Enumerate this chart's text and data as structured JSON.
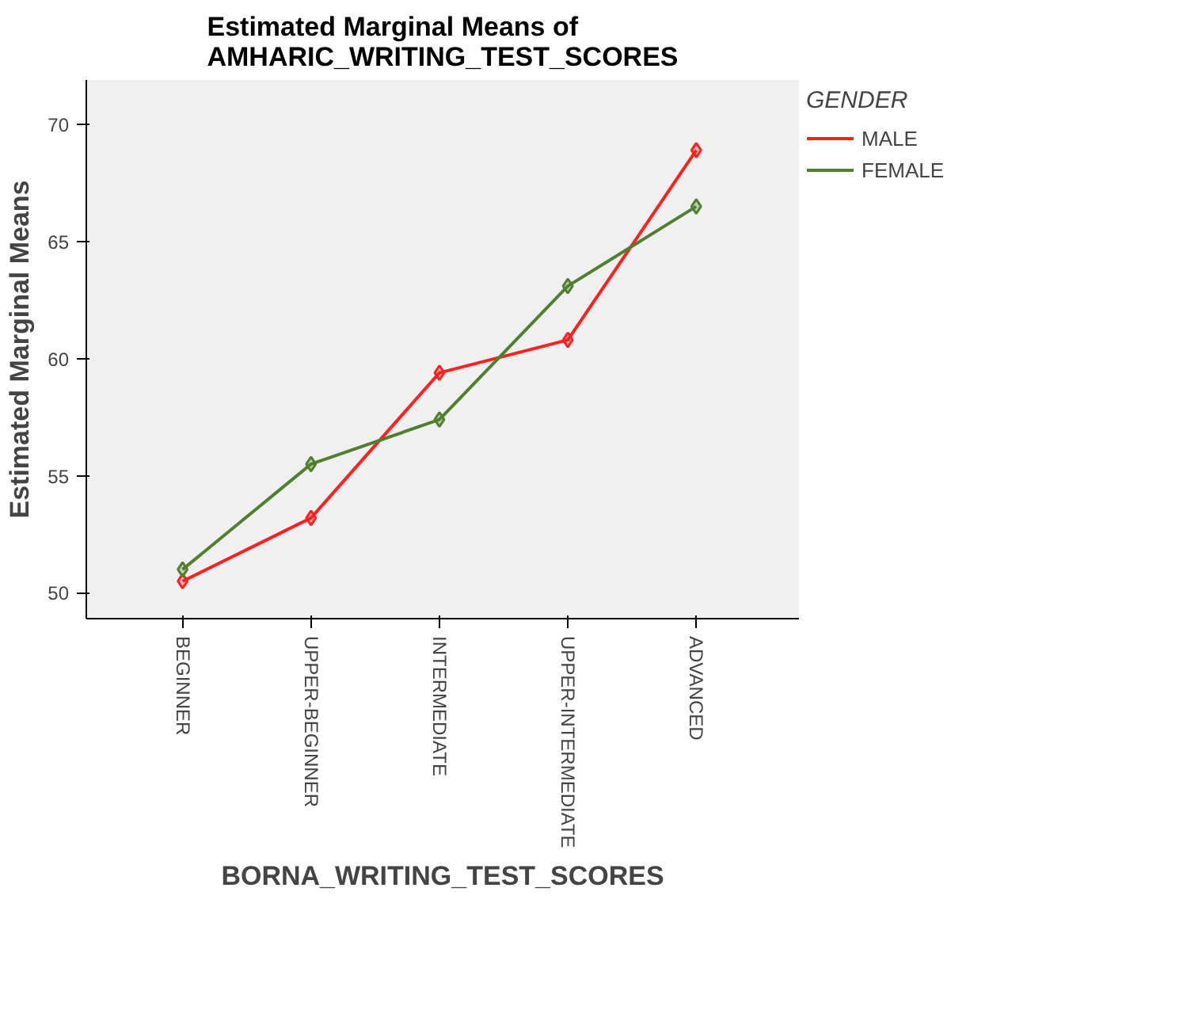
{
  "chart_data": {
    "type": "line",
    "title": "Estimated Marginal Means of\nAMHARIC_WRITING_TEST_SCORES",
    "xlabel": "BORNA_WRITING_TEST_SCORES",
    "ylabel": "Estimated Marginal Means",
    "legend_title": "GENDER",
    "categories": [
      "BEGINNER",
      "UPPER-BEGINNER",
      "INTERMEDIATE",
      "UPPER-INTERMEDIATE",
      "ADVANCED"
    ],
    "series": [
      {
        "name": "MALE",
        "color": "#ff2020",
        "values": [
          50.5,
          53.2,
          59.4,
          60.8,
          68.9
        ]
      },
      {
        "name": "FEMALE",
        "color": "#4f7f2f",
        "values": [
          51.0,
          55.5,
          57.4,
          63.1,
          66.5
        ]
      }
    ],
    "ylim": [
      48.9,
      71.9
    ],
    "yticks": [
      50,
      55,
      60,
      65,
      70
    ],
    "grid": false,
    "legend": "right",
    "marker": "diamond",
    "line_style": "solid"
  }
}
